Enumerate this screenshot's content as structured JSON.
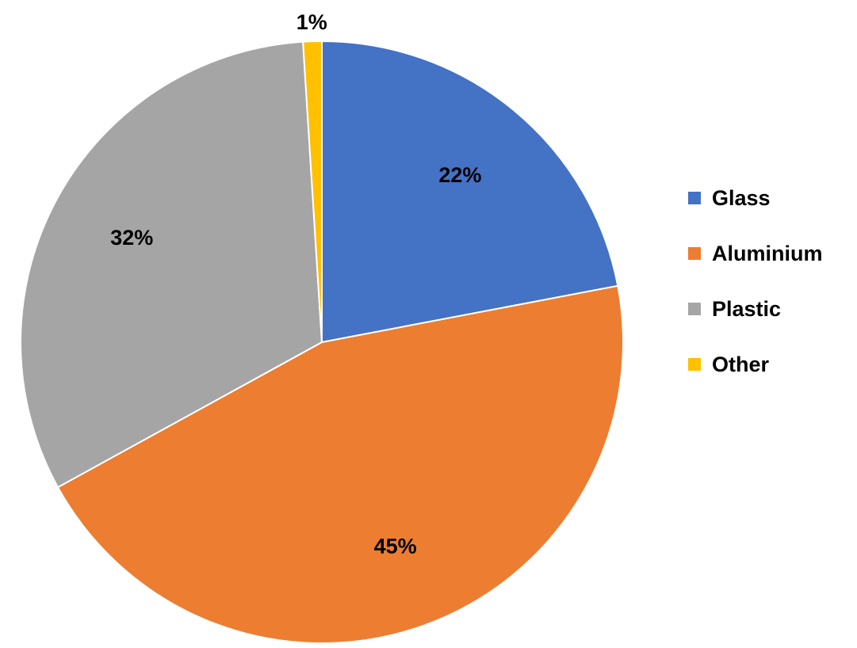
{
  "chart_data": {
    "type": "pie",
    "title": "",
    "slices": [
      {
        "label": "Glass",
        "value": 22,
        "display": "22%",
        "color": "#4472C4"
      },
      {
        "label": "Aluminium",
        "value": 45,
        "display": "45%",
        "color": "#ED7D31"
      },
      {
        "label": "Plastic",
        "value": 32,
        "display": "32%",
        "color": "#A5A5A5"
      },
      {
        "label": "Other",
        "value": 1,
        "display": "1%",
        "color": "#FFC000"
      }
    ],
    "legend_position": "right",
    "start_angle": "12 o'clock",
    "direction": "clockwise",
    "data_labels": true
  }
}
